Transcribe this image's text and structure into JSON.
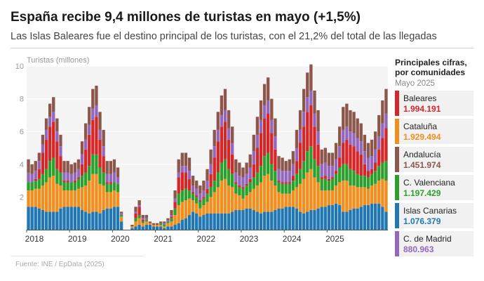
{
  "header": {
    "title": "España recibe 9,4 millones de turistas en mayo (+1,5%)",
    "subtitle": "Las Islas Baleares fue el destino principal de los turistas, con el 21,2% del total de las llegadas"
  },
  "source": "Fuente: INE / EpData (2025)",
  "panel": {
    "heading": "Principales cifras, por comunidades",
    "date": "Mayo 2025",
    "items": [
      {
        "name": "Baleares",
        "value": "1.994.191",
        "color": "#d62728"
      },
      {
        "name": "Cataluña",
        "value": "1.929.494",
        "color": "#f28e1c"
      },
      {
        "name": "Andalucía",
        "value": "1.451.974",
        "color": "#8c564b"
      },
      {
        "name": "C. Valenciana",
        "value": "1.197.429",
        "color": "#2ca02c"
      },
      {
        "name": "Islas Canarias",
        "value": "1.076.379",
        "color": "#1f77b4"
      },
      {
        "name": "C. de Madrid",
        "value": "880.963",
        "color": "#9467bd"
      }
    ]
  },
  "chart_data": {
    "type": "bar",
    "stacked": true,
    "ylabel": "Turistas (millones)",
    "ylim": [
      0,
      10
    ],
    "yticks": [
      2,
      4,
      6,
      8,
      10
    ],
    "year_labels": [
      "2018",
      "2019",
      "2020",
      "2021",
      "2022",
      "2023",
      "2024",
      "2025"
    ],
    "x_start": "2018-01",
    "series": [
      {
        "name": "Islas Canarias",
        "color": "#1f77b4",
        "values": [
          1.4,
          1.4,
          1.4,
          1.3,
          1.2,
          1.1,
          1.1,
          1.1,
          1.1,
          1.3,
          1.4,
          1.4,
          1.4,
          1.4,
          1.4,
          1.2,
          1.1,
          1.0,
          1.1,
          1.1,
          1.0,
          1.2,
          1.3,
          1.3,
          1.4,
          1.4,
          0.5,
          0.0,
          0.0,
          0.1,
          0.2,
          0.3,
          0.2,
          0.3,
          0.3,
          0.2,
          0.2,
          0.2,
          0.1,
          0.2,
          0.2,
          0.3,
          0.4,
          0.6,
          0.7,
          0.9,
          1.1,
          1.0,
          0.8,
          0.9,
          1.0,
          1.0,
          1.0,
          1.0,
          1.0,
          1.0,
          1.0,
          1.1,
          1.2,
          1.2,
          1.2,
          1.3,
          1.3,
          1.2,
          1.1,
          1.0,
          1.1,
          1.1,
          1.1,
          1.2,
          1.3,
          1.3,
          1.4,
          1.4,
          1.4,
          1.3,
          1.1,
          1.0,
          1.1,
          1.2,
          1.2,
          1.3,
          1.4,
          1.4,
          1.5,
          1.5,
          1.6,
          1.5,
          1.1,
          1.1,
          1.2,
          1.3,
          1.3,
          1.4,
          1.5,
          1.5,
          1.6,
          1.6,
          1.6,
          1.4,
          1.1
        ]
      },
      {
        "name": "Cataluña",
        "color": "#f28e1c",
        "values": [
          1.0,
          1.0,
          1.1,
          1.2,
          1.5,
          1.8,
          2.1,
          2.2,
          1.7,
          1.4,
          1.0,
          1.0,
          1.0,
          1.0,
          1.1,
          1.4,
          1.6,
          2.0,
          2.3,
          2.3,
          1.8,
          1.5,
          1.0,
          1.0,
          1.0,
          0.9,
          0.3,
          0.0,
          0.0,
          0.1,
          0.3,
          0.4,
          0.2,
          0.2,
          0.1,
          0.1,
          0.1,
          0.1,
          0.1,
          0.2,
          0.3,
          0.6,
          1.1,
          1.1,
          1.1,
          1.0,
          0.7,
          0.6,
          0.5,
          0.6,
          0.7,
          1.0,
          1.3,
          1.6,
          2.0,
          2.1,
          1.7,
          1.5,
          1.0,
          0.9,
          0.7,
          0.8,
          1.0,
          1.3,
          1.6,
          1.9,
          2.2,
          2.3,
          1.9,
          1.5,
          1.0,
          0.9,
          0.8,
          0.8,
          1.0,
          1.3,
          1.7,
          2.1,
          2.4,
          2.5,
          2.0,
          1.6,
          1.0,
          1.0,
          0.9,
          0.9,
          1.1,
          1.4,
          1.9,
          1.9,
          1.5,
          1.4,
          1.3,
          1.2,
          1.1,
          1.0,
          1.1,
          1.2,
          1.4,
          1.7,
          1.9
        ]
      },
      {
        "name": "C. Valenciana",
        "color": "#2ca02c",
        "values": [
          0.5,
          0.5,
          0.5,
          0.6,
          0.7,
          0.8,
          1.0,
          1.1,
          0.9,
          0.8,
          0.5,
          0.5,
          0.5,
          0.5,
          0.6,
          0.7,
          0.8,
          0.9,
          1.2,
          1.2,
          1.0,
          0.8,
          0.5,
          0.5,
          0.5,
          0.5,
          0.1,
          0.0,
          0.0,
          0.0,
          0.2,
          0.2,
          0.1,
          0.1,
          0.0,
          0.0,
          0.0,
          0.1,
          0.1,
          0.1,
          0.2,
          0.4,
          0.7,
          0.7,
          0.7,
          0.5,
          0.4,
          0.4,
          0.4,
          0.4,
          0.5,
          0.6,
          0.7,
          0.9,
          1.1,
          1.2,
          1.0,
          0.8,
          0.6,
          0.5,
          0.6,
          0.6,
          0.6,
          0.7,
          0.8,
          1.0,
          1.2,
          1.3,
          1.0,
          0.9,
          0.6,
          0.6,
          0.6,
          0.6,
          0.6,
          0.8,
          0.9,
          1.1,
          1.3,
          1.4,
          1.1,
          1.0,
          0.7,
          0.7,
          0.6,
          0.7,
          0.7,
          0.9,
          1.0,
          1.0,
          1.0,
          0.9,
          0.8,
          0.7,
          0.7,
          0.7,
          0.7,
          0.8,
          0.9,
          1.0,
          1.2
        ]
      },
      {
        "name": "Baleares",
        "color": "#d62728",
        "values": [
          0.0,
          0.0,
          0.1,
          0.6,
          1.3,
          1.8,
          2.1,
          2.2,
          1.7,
          1.0,
          0.1,
          0.1,
          0.0,
          0.1,
          0.1,
          0.7,
          1.4,
          1.9,
          2.1,
          2.3,
          1.7,
          1.0,
          0.1,
          0.1,
          0.0,
          0.0,
          0.0,
          0.0,
          0.0,
          0.0,
          0.3,
          0.5,
          0.1,
          0.0,
          0.0,
          0.0,
          0.0,
          0.0,
          0.0,
          0.0,
          0.1,
          0.4,
          1.0,
          1.1,
          1.0,
          0.7,
          0.1,
          0.1,
          0.1,
          0.1,
          0.3,
          0.8,
          1.4,
          1.9,
          2.2,
          2.3,
          1.8,
          1.2,
          0.1,
          0.1,
          0.1,
          0.1,
          0.2,
          0.8,
          1.5,
          2.0,
          2.3,
          2.4,
          1.9,
          1.3,
          0.1,
          0.1,
          0.1,
          0.1,
          0.3,
          0.8,
          1.6,
          2.1,
          2.4,
          2.5,
          2.0,
          1.3,
          0.1,
          0.2,
          0.1,
          0.1,
          0.2,
          0.6,
          1.3,
          1.5,
          1.5,
          1.5,
          1.4,
          1.3,
          0.7,
          0.4,
          0.3,
          0.5,
          1.0,
          1.5,
          2.0
        ]
      },
      {
        "name": "C. de Madrid",
        "color": "#9467bd",
        "values": [
          0.6,
          0.5,
          0.5,
          0.5,
          0.5,
          0.6,
          0.6,
          0.6,
          0.6,
          0.6,
          0.5,
          0.5,
          0.5,
          0.5,
          0.5,
          0.6,
          0.6,
          0.6,
          0.7,
          0.7,
          0.6,
          0.6,
          0.5,
          0.5,
          0.6,
          0.4,
          0.1,
          0.0,
          0.0,
          0.0,
          0.1,
          0.1,
          0.1,
          0.1,
          0.0,
          0.0,
          0.0,
          0.0,
          0.1,
          0.1,
          0.1,
          0.2,
          0.3,
          0.4,
          0.4,
          0.5,
          0.4,
          0.4,
          0.4,
          0.4,
          0.5,
          0.6,
          0.7,
          0.7,
          0.7,
          0.7,
          0.7,
          0.7,
          0.6,
          0.6,
          0.6,
          0.6,
          0.7,
          0.8,
          0.8,
          0.8,
          0.8,
          0.8,
          0.8,
          0.8,
          0.7,
          0.7,
          0.7,
          0.7,
          0.7,
          0.8,
          0.8,
          0.9,
          0.9,
          0.9,
          0.8,
          0.8,
          0.8,
          0.8,
          0.8,
          0.7,
          0.7,
          0.7,
          0.8,
          0.8,
          0.8,
          0.8,
          0.8,
          0.8,
          0.8,
          0.8,
          0.8,
          0.8,
          0.8,
          0.9,
          0.9
        ]
      },
      {
        "name": "Andalucía",
        "color": "#8c564b",
        "values": [
          0.8,
          0.6,
          0.6,
          0.5,
          0.6,
          0.7,
          0.8,
          0.9,
          0.8,
          0.7,
          0.7,
          0.7,
          0.6,
          0.6,
          0.6,
          0.8,
          1.0,
          1.1,
          1.2,
          1.2,
          1.1,
          1.0,
          0.8,
          0.8,
          0.8,
          0.6,
          0.1,
          0.0,
          0.0,
          0.1,
          0.3,
          0.3,
          0.2,
          0.2,
          0.1,
          0.1,
          0.1,
          0.1,
          0.1,
          0.1,
          0.3,
          0.5,
          0.8,
          0.8,
          0.8,
          0.8,
          0.6,
          0.5,
          0.5,
          0.6,
          0.7,
          0.9,
          1.0,
          1.1,
          1.2,
          1.3,
          1.1,
          1.0,
          0.8,
          0.8,
          0.6,
          0.7,
          0.8,
          1.0,
          1.1,
          1.2,
          1.3,
          1.4,
          1.3,
          1.1,
          0.8,
          0.8,
          0.6,
          0.7,
          0.8,
          1.1,
          1.2,
          1.4,
          1.5,
          1.6,
          1.4,
          1.3,
          0.9,
          0.9,
          0.8,
          0.8,
          1.0,
          1.2,
          1.4,
          1.4,
          1.3,
          1.3,
          1.2,
          1.1,
          1.0,
          0.9,
          1.0,
          1.1,
          1.3,
          1.4,
          1.5
        ]
      }
    ]
  }
}
